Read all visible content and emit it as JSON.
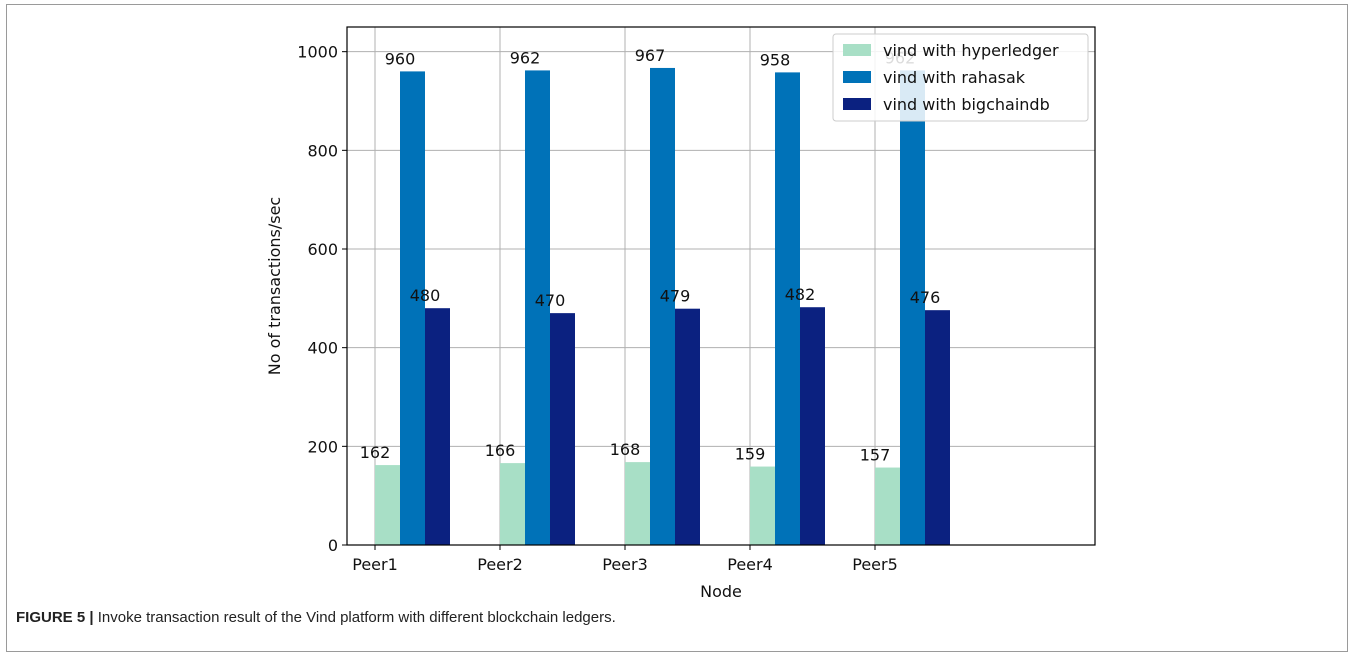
{
  "chart_data": {
    "type": "bar",
    "categories": [
      "Peer1",
      "Peer2",
      "Peer3",
      "Peer4",
      "Peer5"
    ],
    "series": [
      {
        "name": "vind with hyperledger",
        "color": "#a8dfc6",
        "values": [
          162,
          166,
          168,
          159,
          157
        ]
      },
      {
        "name": "vind with rahasak",
        "color": "#0072b8",
        "values": [
          960,
          962,
          967,
          958,
          962
        ]
      },
      {
        "name": "vind with bigchaindb",
        "color": "#0b2180",
        "values": [
          480,
          470,
          479,
          482,
          476
        ]
      }
    ],
    "xlabel": "Node",
    "ylabel": "No of transactions/sec",
    "ylim": [
      0,
      1050
    ],
    "yticks": [
      0,
      200,
      400,
      600,
      800,
      1000
    ],
    "grid": true,
    "legend_position": "top-right"
  },
  "caption": {
    "label": "FIGURE 5 |",
    "text": " Invoke transaction result of the Vind platform with different blockchain ledgers."
  }
}
